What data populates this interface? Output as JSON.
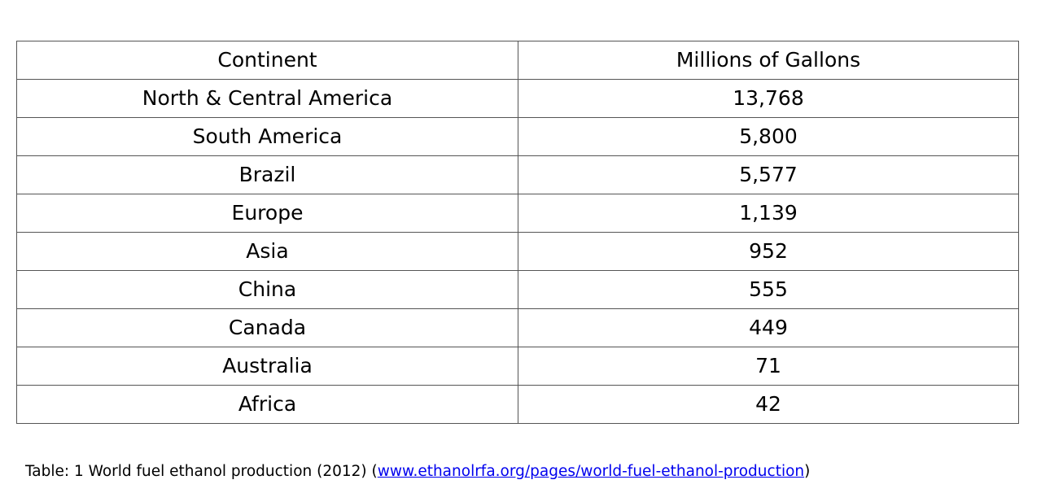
{
  "table": {
    "headers": [
      "Continent",
      "Millions of Gallons"
    ],
    "rows": [
      {
        "continent": "North & Central America",
        "value": "13,768"
      },
      {
        "continent": "South America",
        "value": "5,800"
      },
      {
        "continent": "Brazil",
        "value": "5,577"
      },
      {
        "continent": "Europe",
        "value": "1,139"
      },
      {
        "continent": "Asia",
        "value": "952"
      },
      {
        "continent": "China",
        "value": "555"
      },
      {
        "continent": "Canada",
        "value": "449"
      },
      {
        "continent": "Australia",
        "value": "71"
      },
      {
        "continent": "Africa",
        "value": "42"
      }
    ]
  },
  "caption": {
    "text": "Table: 1 World fuel ethanol production (2012) (",
    "link_text": "www.ethanolrfa.org/pages/world-fuel-ethanol-production",
    "suffix": ")",
    "link_color": "#0000ee"
  }
}
